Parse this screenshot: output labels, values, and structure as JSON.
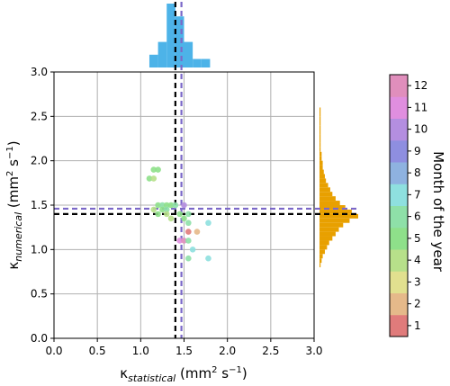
{
  "chart_data": {
    "type": "scatter",
    "xlabel": {
      "main": "κ",
      "sub": "statistical",
      "unit_pre": "(mm",
      "unit_sup": "2",
      "unit_mid": " s",
      "unit_sup2": "−1",
      "unit_post": ")"
    },
    "ylabel": {
      "main": "κ",
      "sub": "numerical",
      "unit_pre": "(mm",
      "unit_sup": "2",
      "unit_mid": " s",
      "unit_sup2": "−1",
      "unit_post": ")"
    },
    "xlim": [
      0,
      3
    ],
    "ylim": [
      0,
      3
    ],
    "x_ticks": [
      "0.0",
      "0.5",
      "1.0",
      "1.5",
      "2.0",
      "2.5",
      "3.0"
    ],
    "y_ticks": [
      "0.0",
      "0.5",
      "1.0",
      "1.5",
      "2.0",
      "2.5",
      "3.0"
    ],
    "grid": true,
    "colorbar": {
      "label": "Month of the year",
      "ticks": [
        "1",
        "2",
        "3",
        "4",
        "5",
        "6",
        "7",
        "8",
        "9",
        "10",
        "11",
        "12"
      ],
      "colors": [
        "#e07b7b",
        "#e5b98a",
        "#e1e08f",
        "#b7e08a",
        "#8ee08a",
        "#8ee0a8",
        "#8ee0df",
        "#8eb2e0",
        "#8e8ee0",
        "#b48ee0",
        "#e08edf",
        "#e08ebc"
      ]
    },
    "points": [
      {
        "x": 1.15,
        "y": 1.9,
        "month": 5
      },
      {
        "x": 1.2,
        "y": 1.9,
        "month": 5
      },
      {
        "x": 1.1,
        "y": 1.8,
        "month": 5
      },
      {
        "x": 1.15,
        "y": 1.8,
        "month": 4
      },
      {
        "x": 1.2,
        "y": 1.5,
        "month": 5
      },
      {
        "x": 1.25,
        "y": 1.5,
        "month": 6
      },
      {
        "x": 1.3,
        "y": 1.5,
        "month": 5
      },
      {
        "x": 1.35,
        "y": 1.5,
        "month": 5
      },
      {
        "x": 1.4,
        "y": 1.5,
        "month": 6
      },
      {
        "x": 1.5,
        "y": 1.5,
        "month": 10
      },
      {
        "x": 1.15,
        "y": 1.45,
        "month": 4
      },
      {
        "x": 1.25,
        "y": 1.45,
        "month": 5
      },
      {
        "x": 1.3,
        "y": 1.45,
        "month": 6
      },
      {
        "x": 1.2,
        "y": 1.4,
        "month": 5
      },
      {
        "x": 1.3,
        "y": 1.4,
        "month": 4
      },
      {
        "x": 1.45,
        "y": 1.4,
        "month": 5
      },
      {
        "x": 1.55,
        "y": 1.4,
        "month": 6
      },
      {
        "x": 1.35,
        "y": 1.35,
        "month": 4
      },
      {
        "x": 1.5,
        "y": 1.35,
        "month": 5
      },
      {
        "x": 1.55,
        "y": 1.3,
        "month": 6
      },
      {
        "x": 1.78,
        "y": 1.3,
        "month": 7
      },
      {
        "x": 1.55,
        "y": 1.2,
        "month": 1
      },
      {
        "x": 1.65,
        "y": 1.2,
        "month": 2
      },
      {
        "x": 1.45,
        "y": 1.1,
        "month": 11
      },
      {
        "x": 1.5,
        "y": 1.1,
        "month": 12
      },
      {
        "x": 1.55,
        "y": 1.1,
        "month": 6
      },
      {
        "x": 1.6,
        "y": 1.0,
        "month": 7
      },
      {
        "x": 1.55,
        "y": 0.9,
        "month": 6
      },
      {
        "x": 1.78,
        "y": 0.9,
        "month": 7
      }
    ],
    "reference_lines": [
      {
        "axis": "x",
        "value": 1.4,
        "color": "#000000"
      },
      {
        "axis": "x",
        "value": 1.47,
        "color": "#7b68c8"
      },
      {
        "axis": "y",
        "value": 1.4,
        "color": "#000000"
      },
      {
        "axis": "y",
        "value": 1.46,
        "color": "#7b68c8"
      }
    ],
    "top_histogram": {
      "color": "#4db3e8",
      "bins": [
        {
          "x0": 1.1,
          "x1": 1.2,
          "count": 3
        },
        {
          "x0": 1.2,
          "x1": 1.3,
          "count": 6
        },
        {
          "x0": 1.3,
          "x1": 1.4,
          "count": 15
        },
        {
          "x0": 1.4,
          "x1": 1.5,
          "count": 12
        },
        {
          "x0": 1.5,
          "x1": 1.6,
          "count": 6
        },
        {
          "x0": 1.6,
          "x1": 1.7,
          "count": 2
        },
        {
          "x0": 1.7,
          "x1": 1.8,
          "count": 2
        }
      ]
    },
    "right_histogram": {
      "color": "#e8a000",
      "bins": [
        {
          "y0": 0.8,
          "y1": 0.85,
          "count": 1
        },
        {
          "y0": 0.85,
          "y1": 0.9,
          "count": 2
        },
        {
          "y0": 0.9,
          "y1": 0.95,
          "count": 3
        },
        {
          "y0": 0.95,
          "y1": 1.0,
          "count": 5
        },
        {
          "y0": 1.0,
          "y1": 1.05,
          "count": 7
        },
        {
          "y0": 1.05,
          "y1": 1.1,
          "count": 9
        },
        {
          "y0": 1.1,
          "y1": 1.15,
          "count": 12
        },
        {
          "y0": 1.15,
          "y1": 1.2,
          "count": 15
        },
        {
          "y0": 1.2,
          "y1": 1.25,
          "count": 18
        },
        {
          "y0": 1.25,
          "y1": 1.3,
          "count": 22
        },
        {
          "y0": 1.3,
          "y1": 1.35,
          "count": 28
        },
        {
          "y0": 1.35,
          "y1": 1.4,
          "count": 36
        },
        {
          "y0": 1.4,
          "y1": 1.45,
          "count": 30
        },
        {
          "y0": 1.45,
          "y1": 1.5,
          "count": 24
        },
        {
          "y0": 1.5,
          "y1": 1.55,
          "count": 19
        },
        {
          "y0": 1.55,
          "y1": 1.6,
          "count": 15
        },
        {
          "y0": 1.6,
          "y1": 1.65,
          "count": 12
        },
        {
          "y0": 1.65,
          "y1": 1.7,
          "count": 10
        },
        {
          "y0": 1.7,
          "y1": 1.75,
          "count": 8
        },
        {
          "y0": 1.75,
          "y1": 1.8,
          "count": 6
        },
        {
          "y0": 1.8,
          "y1": 1.85,
          "count": 5
        },
        {
          "y0": 1.85,
          "y1": 1.9,
          "count": 4
        },
        {
          "y0": 1.9,
          "y1": 1.95,
          "count": 3
        },
        {
          "y0": 1.95,
          "y1": 2.0,
          "count": 3
        },
        {
          "y0": 2.0,
          "y1": 2.05,
          "count": 2
        },
        {
          "y0": 2.05,
          "y1": 2.1,
          "count": 2
        },
        {
          "y0": 2.1,
          "y1": 2.15,
          "count": 1
        },
        {
          "y0": 2.15,
          "y1": 2.2,
          "count": 1
        },
        {
          "y0": 2.2,
          "y1": 2.3,
          "count": 1
        },
        {
          "y0": 2.3,
          "y1": 2.4,
          "count": 1
        },
        {
          "y0": 2.4,
          "y1": 2.5,
          "count": 1
        },
        {
          "y0": 2.5,
          "y1": 2.6,
          "count": 1
        }
      ]
    }
  }
}
